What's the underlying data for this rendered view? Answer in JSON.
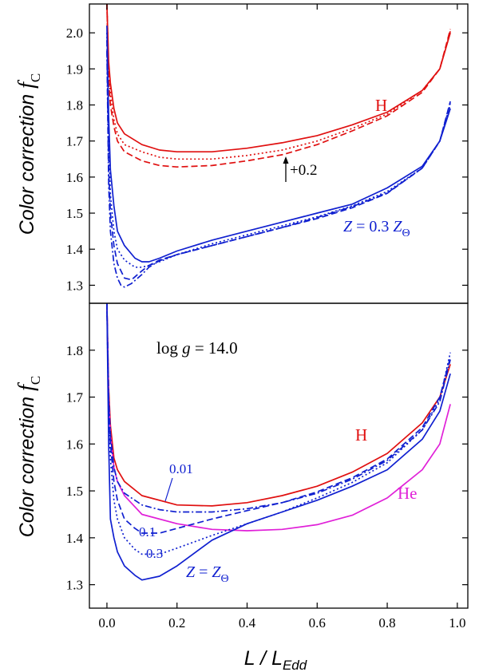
{
  "chart_data": [
    {
      "id": "top",
      "type": "line",
      "xlabel": "L / L_Edd",
      "ylabel": "Color correction f_C",
      "ylim": [
        1.25,
        2.08
      ],
      "xlim": [
        -0.05,
        1.03
      ],
      "yticks": [
        "1.3",
        "1.4",
        "1.5",
        "1.6",
        "1.7",
        "1.8",
        "1.9",
        "2.0"
      ],
      "colors": {
        "H": "#e01010",
        "Z": "#1020d0"
      },
      "annotations": {
        "H": "H",
        "shift": "+0.2",
        "Z_prefix": "Z",
        "Z_mid": " = 0.3 ",
        "Z_sym": "Z",
        "Z_sub": "Θ"
      },
      "series": [
        {
          "name": "H solid",
          "color": "H",
          "dash": "solid",
          "x": [
            0.0,
            0.005,
            0.01,
            0.02,
            0.03,
            0.05,
            0.1,
            0.15,
            0.2,
            0.3,
            0.4,
            0.5,
            0.6,
            0.7,
            0.8,
            0.9,
            0.95,
            0.98
          ],
          "y": [
            2.08,
            1.92,
            1.86,
            1.79,
            1.75,
            1.72,
            1.69,
            1.675,
            1.67,
            1.67,
            1.68,
            1.695,
            1.715,
            1.745,
            1.78,
            1.84,
            1.9,
            2.0
          ]
        },
        {
          "name": "H dotted",
          "color": "H",
          "dash": "dotted",
          "x": [
            0.0,
            0.005,
            0.01,
            0.02,
            0.03,
            0.05,
            0.1,
            0.15,
            0.2,
            0.3,
            0.4,
            0.5,
            0.6,
            0.7,
            0.8,
            0.9,
            0.95,
            0.98
          ],
          "y": [
            2.08,
            1.89,
            1.83,
            1.76,
            1.72,
            1.69,
            1.67,
            1.655,
            1.65,
            1.65,
            1.66,
            1.675,
            1.7,
            1.735,
            1.775,
            1.84,
            1.9,
            2.005
          ]
        },
        {
          "name": "H dashed",
          "color": "H",
          "dash": "dashed",
          "x": [
            0.0,
            0.005,
            0.01,
            0.02,
            0.03,
            0.05,
            0.1,
            0.15,
            0.2,
            0.3,
            0.4,
            0.5,
            0.6,
            0.7,
            0.8,
            0.9,
            0.95,
            0.98
          ],
          "y": [
            2.08,
            1.87,
            1.8,
            1.74,
            1.7,
            1.67,
            1.645,
            1.632,
            1.628,
            1.632,
            1.645,
            1.662,
            1.69,
            1.728,
            1.77,
            1.835,
            1.9,
            2.01
          ]
        },
        {
          "name": "Z solid",
          "color": "Z",
          "dash": "solid",
          "x": [
            0.0,
            0.005,
            0.01,
            0.02,
            0.03,
            0.05,
            0.08,
            0.1,
            0.12,
            0.15,
            0.2,
            0.3,
            0.4,
            0.5,
            0.6,
            0.7,
            0.8,
            0.9,
            0.95,
            0.98
          ],
          "y": [
            2.02,
            1.77,
            1.62,
            1.52,
            1.45,
            1.41,
            1.375,
            1.365,
            1.365,
            1.375,
            1.395,
            1.425,
            1.45,
            1.475,
            1.5,
            1.525,
            1.57,
            1.63,
            1.7,
            1.79
          ]
        },
        {
          "name": "Z dotted",
          "color": "Z",
          "dash": "dotted",
          "x": [
            0.0,
            0.005,
            0.01,
            0.02,
            0.03,
            0.05,
            0.08,
            0.1,
            0.12,
            0.15,
            0.2,
            0.3,
            0.4,
            0.5,
            0.6,
            0.7,
            0.8,
            0.9,
            0.95,
            0.98
          ],
          "y": [
            2.0,
            1.7,
            1.55,
            1.45,
            1.4,
            1.37,
            1.35,
            1.35,
            1.355,
            1.365,
            1.385,
            1.415,
            1.44,
            1.465,
            1.49,
            1.52,
            1.56,
            1.625,
            1.7,
            1.8
          ]
        },
        {
          "name": "Z dashed",
          "color": "Z",
          "dash": "dashed",
          "x": [
            0.0,
            0.005,
            0.01,
            0.02,
            0.03,
            0.05,
            0.07,
            0.1,
            0.12,
            0.15,
            0.2,
            0.3,
            0.4,
            0.5,
            0.6,
            0.7,
            0.8,
            0.9,
            0.95,
            0.98
          ],
          "y": [
            1.98,
            1.62,
            1.5,
            1.41,
            1.36,
            1.32,
            1.315,
            1.34,
            1.355,
            1.37,
            1.385,
            1.41,
            1.435,
            1.46,
            1.485,
            1.515,
            1.555,
            1.625,
            1.7,
            1.81
          ]
        },
        {
          "name": "Z dash-dot",
          "color": "Z",
          "dash": "dashdot",
          "x": [
            0.0,
            0.005,
            0.01,
            0.02,
            0.03,
            0.04,
            0.05,
            0.07,
            0.1,
            0.12,
            0.15,
            0.2,
            0.3,
            0.4,
            0.5,
            0.6,
            0.7,
            0.8,
            0.9,
            0.95,
            0.98
          ],
          "y": [
            1.95,
            1.58,
            1.45,
            1.36,
            1.32,
            1.3,
            1.295,
            1.305,
            1.33,
            1.35,
            1.368,
            1.385,
            1.41,
            1.435,
            1.46,
            1.488,
            1.518,
            1.556,
            1.625,
            1.7,
            1.805
          ]
        }
      ]
    },
    {
      "id": "bottom",
      "type": "line",
      "xlabel": "L / L_Edd",
      "ylabel": "Color correction f_C",
      "ylim": [
        1.25,
        1.9
      ],
      "xlim": [
        -0.05,
        1.03
      ],
      "xticks": [
        "0.0",
        "0.2",
        "0.4",
        "0.6",
        "0.8",
        "1.0"
      ],
      "yticks": [
        "1.3",
        "1.4",
        "1.5",
        "1.6",
        "1.7",
        "1.8"
      ],
      "colors": {
        "H": "#e01010",
        "He": "#e020d8",
        "Z": "#1020d0"
      },
      "annotations": {
        "logg_prefix": "log ",
        "logg_g": "g",
        "logg_value": " = 14.0",
        "H": "H",
        "He": "He",
        "z001": "0.01",
        "z01": "0.1",
        "z03": "0.3",
        "Z_prefix": "Z",
        "Z_mid": " = ",
        "Z_sym": "Z",
        "Z_sub": "Θ"
      },
      "series": [
        {
          "name": "H",
          "color": "H",
          "dash": "solid",
          "x": [
            0.0,
            0.005,
            0.01,
            0.02,
            0.03,
            0.05,
            0.1,
            0.2,
            0.3,
            0.4,
            0.5,
            0.6,
            0.7,
            0.8,
            0.9,
            0.95,
            0.98
          ],
          "y": [
            1.9,
            1.72,
            1.64,
            1.57,
            1.545,
            1.52,
            1.49,
            1.47,
            1.468,
            1.475,
            1.49,
            1.51,
            1.54,
            1.58,
            1.645,
            1.7,
            1.77
          ]
        },
        {
          "name": "He",
          "color": "He",
          "dash": "solid",
          "x": [
            0.0,
            0.005,
            0.01,
            0.02,
            0.03,
            0.05,
            0.1,
            0.2,
            0.3,
            0.4,
            0.5,
            0.6,
            0.7,
            0.8,
            0.9,
            0.95,
            0.98
          ],
          "y": [
            1.9,
            1.7,
            1.62,
            1.55,
            1.52,
            1.49,
            1.45,
            1.43,
            1.418,
            1.415,
            1.418,
            1.428,
            1.448,
            1.485,
            1.545,
            1.6,
            1.685
          ]
        },
        {
          "name": "Z 0.01",
          "color": "Z",
          "dash": "dashdot",
          "x": [
            0.0,
            0.005,
            0.01,
            0.02,
            0.03,
            0.05,
            0.1,
            0.15,
            0.2,
            0.3,
            0.4,
            0.5,
            0.6,
            0.7,
            0.8,
            0.9,
            0.95,
            0.98
          ],
          "y": [
            1.9,
            1.7,
            1.62,
            1.55,
            1.52,
            1.495,
            1.47,
            1.46,
            1.455,
            1.455,
            1.462,
            1.475,
            1.495,
            1.525,
            1.565,
            1.63,
            1.69,
            1.78
          ]
        },
        {
          "name": "Z 0.03",
          "color": "Z",
          "dash": "dashed",
          "x": [
            0.0,
            0.005,
            0.01,
            0.02,
            0.03,
            0.05,
            0.08,
            0.1,
            0.15,
            0.2,
            0.3,
            0.4,
            0.5,
            0.6,
            0.7,
            0.8,
            0.9,
            0.95,
            0.98
          ],
          "y": [
            1.9,
            1.68,
            1.6,
            1.52,
            1.48,
            1.44,
            1.42,
            1.41,
            1.41,
            1.42,
            1.44,
            1.458,
            1.475,
            1.498,
            1.528,
            1.568,
            1.635,
            1.7,
            1.785
          ]
        },
        {
          "name": "Z 0.1",
          "color": "Z",
          "dash": "dotted",
          "x": [
            0.0,
            0.005,
            0.01,
            0.02,
            0.03,
            0.05,
            0.08,
            0.1,
            0.15,
            0.2,
            0.3,
            0.4,
            0.5,
            0.6,
            0.7,
            0.8,
            0.9,
            0.95,
            0.98
          ],
          "y": [
            1.9,
            1.66,
            1.57,
            1.48,
            1.44,
            1.4,
            1.375,
            1.365,
            1.365,
            1.378,
            1.405,
            1.43,
            1.455,
            1.485,
            1.518,
            1.56,
            1.63,
            1.695,
            1.795
          ]
        },
        {
          "name": "Z solar",
          "color": "Z",
          "dash": "solid",
          "x": [
            0.0,
            0.005,
            0.01,
            0.02,
            0.03,
            0.05,
            0.08,
            0.1,
            0.15,
            0.2,
            0.3,
            0.4,
            0.5,
            0.6,
            0.7,
            0.8,
            0.9,
            0.95,
            0.98
          ],
          "y": [
            1.9,
            1.6,
            1.44,
            1.4,
            1.37,
            1.34,
            1.32,
            1.31,
            1.318,
            1.34,
            1.395,
            1.43,
            1.455,
            1.48,
            1.51,
            1.545,
            1.61,
            1.67,
            1.75
          ]
        }
      ]
    }
  ]
}
